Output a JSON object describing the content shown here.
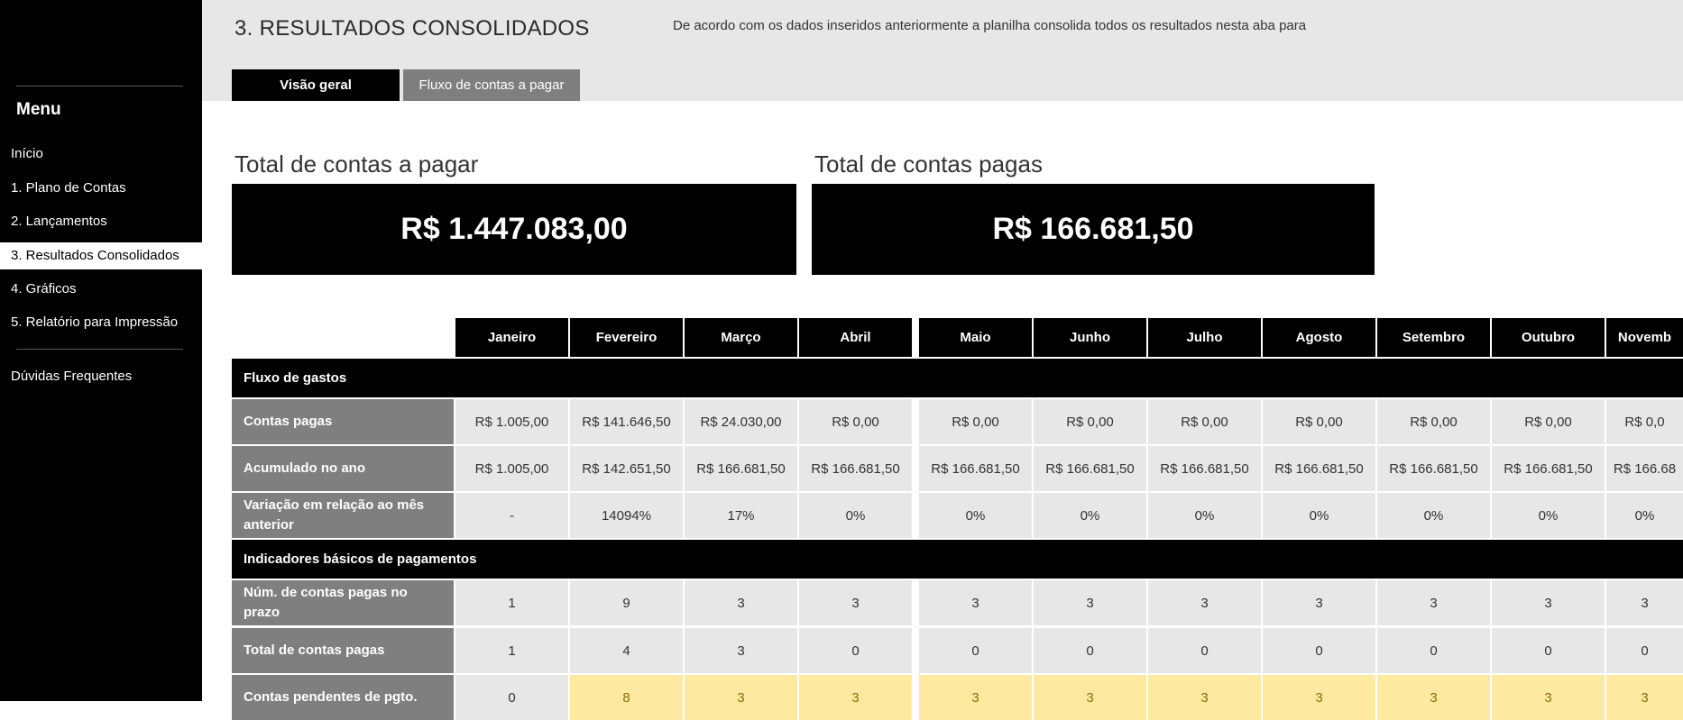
{
  "sidebar": {
    "menu_title": "Menu",
    "items": [
      {
        "label": "Início"
      },
      {
        "label": "1. Plano de Contas"
      },
      {
        "label": "2. Lançamentos"
      },
      {
        "label": "3. Resultados Consolidados",
        "active": true
      },
      {
        "label": "4. Gráficos"
      },
      {
        "label": "5. Relatório para Impressão"
      }
    ],
    "faq": "Dúvidas Frequentes"
  },
  "header": {
    "title": "3. RESULTADOS CONSOLIDADOS",
    "description": "De acordo com os dados inseridos anteriormente a planilha consolida todos os resultados nesta aba para"
  },
  "tabs": [
    {
      "label": "Visão geral",
      "active": true
    },
    {
      "label": "Fluxo de contas a pagar",
      "active": false
    }
  ],
  "kpis": {
    "total_a_pagar": {
      "label": "Total de contas a pagar",
      "value": "R$ 1.447.083,00"
    },
    "total_pagas": {
      "label": "Total de contas pagas",
      "value": "R$ 166.681,50"
    }
  },
  "table": {
    "months": [
      "Janeiro",
      "Fevereiro",
      "Março",
      "Abril",
      "Maio",
      "Junho",
      "Julho",
      "Agosto",
      "Setembro",
      "Outubro",
      "Novemb"
    ],
    "sections": [
      {
        "title": "Fluxo de gastos",
        "rows": [
          {
            "label": "Contas pagas",
            "values": [
              "R$ 1.005,00",
              "R$ 141.646,50",
              "R$ 24.030,00",
              "R$ 0,00",
              "R$ 0,00",
              "R$ 0,00",
              "R$ 0,00",
              "R$ 0,00",
              "R$ 0,00",
              "R$ 0,00",
              "R$ 0,0"
            ]
          },
          {
            "label": "Acumulado no ano",
            "values": [
              "R$ 1.005,00",
              "R$ 142.651,50",
              "R$ 166.681,50",
              "R$ 166.681,50",
              "R$ 166.681,50",
              "R$ 166.681,50",
              "R$ 166.681,50",
              "R$ 166.681,50",
              "R$ 166.681,50",
              "R$ 166.681,50",
              "R$ 166.68"
            ]
          },
          {
            "label": "Variação em relação ao mês anterior",
            "values": [
              "-",
              "14094%",
              "17%",
              "0%",
              "0%",
              "0%",
              "0%",
              "0%",
              "0%",
              "0%",
              "0%"
            ]
          }
        ]
      },
      {
        "title": "Indicadores básicos de pagamentos",
        "rows": [
          {
            "label": "Núm. de contas pagas no prazo",
            "values": [
              "1",
              "9",
              "3",
              "3",
              "3",
              "3",
              "3",
              "3",
              "3",
              "3",
              "3"
            ]
          },
          {
            "label": "Total de contas pagas",
            "values": [
              "1",
              "4",
              "3",
              "0",
              "0",
              "0",
              "0",
              "0",
              "0",
              "0",
              "0"
            ]
          },
          {
            "label": "Contas pendentes de pgto.",
            "values": [
              "0",
              "8",
              "3",
              "3",
              "3",
              "3",
              "3",
              "3",
              "3",
              "3",
              "3"
            ],
            "highlight_from": 1
          }
        ]
      }
    ]
  },
  "colors": {
    "sidebar_bg": "#000000",
    "band_bg": "#e7e7e7",
    "row_label_bg": "#7f7f7f",
    "cell_bg": "#e7e7e7",
    "pending_highlight": "#fdeaa0"
  }
}
